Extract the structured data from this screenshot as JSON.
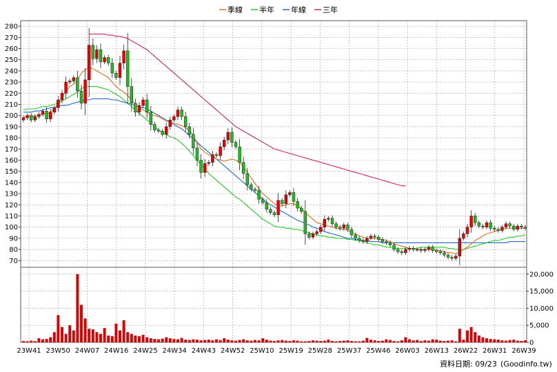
{
  "chart_data": {
    "type": "candlestick",
    "x_labels": [
      "23W41",
      "23W50",
      "24W07",
      "24W16",
      "24W25",
      "24W34",
      "24W43",
      "24W52",
      "25W10",
      "25W19",
      "25W28",
      "25W37",
      "25W46",
      "26W03",
      "26W13",
      "26W22",
      "26W31",
      "26W39"
    ],
    "y_ticks": [
      70,
      80,
      90,
      100,
      110,
      120,
      130,
      140,
      150,
      160,
      170,
      180,
      190,
      200,
      210,
      220,
      230,
      240,
      250,
      260,
      270,
      280
    ],
    "price_range": [
      64,
      285
    ],
    "volume_ticks": [
      0,
      5000,
      10000,
      15000,
      20000
    ],
    "volume_tick_labels": [
      "0",
      "5,000",
      "10,000",
      "15,000",
      "20,000"
    ],
    "volume_range": [
      0,
      22000
    ],
    "legend": [
      {
        "name": "季線",
        "color": "#e07020"
      },
      {
        "name": "半年",
        "color": "#22cc22"
      },
      {
        "name": "年線",
        "color": "#2266cc"
      },
      {
        "name": "三年",
        "color": "#cc2266"
      }
    ],
    "colors": {
      "up": "#ee0000",
      "down": "#22bb22",
      "volume": "#dd0000",
      "grid": "#999999"
    },
    "close": [
      198,
      200,
      196,
      199,
      201,
      204,
      197,
      203,
      207,
      214,
      220,
      230,
      231,
      234,
      222,
      211,
      232,
      263,
      251,
      259,
      248,
      252,
      247,
      238,
      234,
      247,
      258,
      226,
      211,
      203,
      209,
      214,
      203,
      192,
      187,
      186,
      183,
      190,
      196,
      199,
      205,
      199,
      190,
      183,
      171,
      160,
      149,
      157,
      158,
      165,
      164,
      172,
      178,
      185,
      176,
      172,
      158,
      148,
      138,
      134,
      133,
      125,
      122,
      116,
      113,
      111,
      124,
      121,
      129,
      131,
      123,
      117,
      114,
      94,
      91,
      94,
      96,
      100,
      107,
      108,
      103,
      100,
      99,
      102,
      98,
      93,
      90,
      88,
      87,
      90,
      92,
      91,
      89,
      87,
      86,
      84,
      80,
      78,
      77,
      80,
      81,
      80,
      80,
      79,
      80,
      82,
      79,
      78,
      77,
      75,
      73,
      72,
      74,
      90,
      94,
      100,
      110,
      104,
      101,
      100,
      104,
      99,
      98,
      97,
      100,
      103,
      101,
      98,
      101,
      100,
      99
    ],
    "ma_quarter": [
      198,
      200,
      199,
      200,
      200,
      202,
      201,
      203,
      206,
      211,
      216,
      222,
      226,
      228,
      232,
      238,
      241,
      243,
      242,
      240,
      238,
      236,
      234,
      230,
      226,
      223,
      221,
      218,
      214,
      210,
      207,
      205,
      203,
      201,
      200,
      199,
      197,
      195,
      194,
      193,
      192,
      191,
      189,
      187,
      182,
      176,
      170,
      167,
      165,
      163,
      161,
      160,
      159,
      160,
      161,
      160,
      158,
      154,
      149,
      144,
      139,
      134,
      130,
      127,
      124,
      121,
      119,
      119,
      120,
      121,
      121,
      119,
      117,
      113,
      110,
      107,
      104,
      103,
      102,
      101,
      100,
      99,
      98,
      98,
      97,
      95,
      94,
      92,
      91,
      90,
      90,
      90,
      89,
      89,
      88,
      87,
      85,
      84,
      83,
      82,
      81,
      81,
      80,
      80,
      80,
      80,
      80,
      79,
      79,
      78,
      77,
      77,
      76,
      78,
      80,
      82,
      85,
      88,
      90,
      92,
      94,
      95,
      96,
      97,
      98,
      99,
      99,
      99,
      99,
      99,
      99
    ],
    "ma_half": [
      205,
      206,
      206,
      206,
      207,
      208,
      208,
      209,
      210,
      211,
      213,
      215,
      217,
      219,
      221,
      224,
      226,
      226,
      226,
      226,
      225,
      224,
      223,
      221,
      219,
      217,
      214,
      211,
      208,
      205,
      202,
      199,
      196,
      193,
      190,
      187,
      185,
      183,
      181,
      180,
      178,
      175,
      172,
      168,
      164,
      160,
      156,
      152,
      148,
      145,
      142,
      139,
      136,
      133,
      130,
      127,
      125,
      122,
      119,
      116,
      113,
      110,
      107,
      105,
      103,
      101,
      100,
      100,
      99,
      99,
      98,
      98,
      97,
      96,
      95,
      94,
      93,
      92,
      92,
      91,
      91,
      90,
      90,
      90,
      89,
      89,
      88,
      88,
      87,
      86,
      85,
      84,
      84,
      83,
      82,
      82,
      81,
      81,
      81,
      81,
      81,
      81,
      81,
      82,
      82,
      82,
      82,
      82,
      82,
      82,
      81,
      81,
      80,
      80,
      80,
      81,
      82,
      83,
      84,
      85,
      86,
      87,
      88,
      88,
      89,
      90,
      91,
      91,
      92,
      92,
      93
    ],
    "ma_year": [
      203,
      203,
      203,
      204,
      204,
      205,
      206,
      207,
      207,
      208,
      209,
      209,
      210,
      211,
      212,
      213,
      214,
      214,
      215,
      215,
      215,
      215,
      215,
      214,
      214,
      213,
      212,
      211,
      210,
      209,
      208,
      207,
      206,
      204,
      202,
      200,
      198,
      196,
      194,
      192,
      190,
      188,
      185,
      182,
      179,
      176,
      173,
      170,
      167,
      164,
      161,
      158,
      155,
      152,
      149,
      146,
      143,
      140,
      137,
      134,
      131,
      128,
      125,
      122,
      120,
      118,
      116,
      114,
      112,
      110,
      108,
      106,
      105,
      103,
      102,
      100,
      99,
      98,
      96,
      95,
      94,
      93,
      92,
      91,
      90,
      90,
      89,
      89,
      88,
      88,
      87,
      87,
      87,
      86,
      86,
      86,
      86,
      86,
      86,
      86,
      86,
      86,
      86,
      86,
      86,
      86,
      86,
      86,
      86,
      86,
      86,
      86,
      86,
      86,
      86,
      86,
      86,
      86,
      86,
      86,
      86,
      86,
      86,
      86,
      86,
      86,
      87,
      87,
      87,
      87,
      87
    ],
    "ma_3yr": [
      273,
      273,
      273,
      273,
      273,
      272,
      272,
      271,
      271,
      270,
      269,
      267,
      265,
      263,
      261,
      259,
      256,
      253,
      250,
      247,
      244,
      241,
      238,
      235,
      232,
      229,
      226,
      223,
      220,
      217,
      214,
      211,
      208,
      205,
      202,
      199,
      196,
      193,
      190,
      188,
      186,
      184,
      182,
      180,
      178,
      176,
      174,
      172,
      170,
      169,
      168,
      167,
      166,
      165,
      164,
      163,
      162,
      161,
      160,
      159,
      158,
      157,
      156,
      155,
      154,
      153,
      152,
      151,
      150,
      149,
      148,
      147,
      146,
      145,
      144,
      143,
      142,
      141,
      140,
      139,
      138,
      137,
      137
    ],
    "ma_3yr_offset": 17,
    "volume": [
      400,
      300,
      500,
      350,
      1200,
      900,
      1000,
      1500,
      3000,
      8000,
      4500,
      2500,
      5000,
      3500,
      20000,
      11000,
      7000,
      4000,
      3800,
      3000,
      2500,
      4200,
      2000,
      1800,
      5500,
      3500,
      6500,
      3000,
      2500,
      2000,
      1800,
      2200,
      1500,
      1200,
      1000,
      900,
      1100,
      1500,
      1200,
      1000,
      900,
      1300,
      800,
      700,
      900,
      800,
      600,
      700,
      800,
      600,
      900,
      700,
      1200,
      800,
      600,
      500,
      700,
      900,
      600,
      500,
      700,
      600,
      1200,
      800,
      500,
      400,
      600,
      700,
      500,
      400,
      600,
      500,
      300,
      300,
      400,
      600,
      500,
      400,
      500,
      800,
      400,
      300,
      400,
      500,
      600,
      400,
      300,
      300,
      500,
      1300,
      800,
      600,
      400,
      500,
      900,
      700,
      400,
      300,
      600,
      1500,
      900,
      600,
      700,
      400,
      600,
      500,
      900,
      800,
      500,
      400,
      500,
      600,
      300,
      4000,
      800,
      3500,
      4500,
      3000,
      2000,
      1500,
      1200,
      1000,
      900,
      800,
      600,
      500,
      700,
      800,
      500,
      400,
      600
    ]
  },
  "footer": {
    "date_label": "資料日期: 09/23",
    "source": "(Goodinfo.tw)"
  }
}
